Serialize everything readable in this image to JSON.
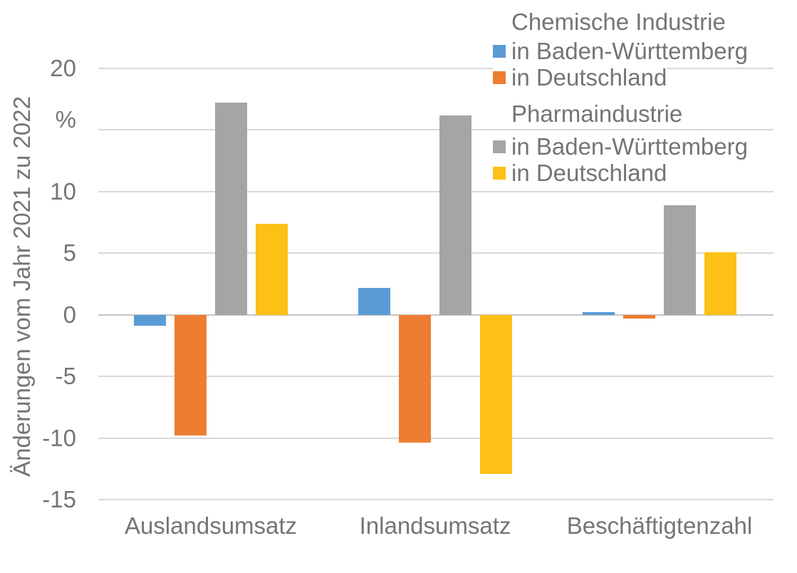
{
  "chart_data": {
    "type": "bar",
    "title": "",
    "ylabel": "Änderungen vom Jahr 2021 zu 2022",
    "unit": "%",
    "categories": [
      "Auslandsumsatz",
      "Inlandsumsatz",
      "Beschäftigtenzahl"
    ],
    "series": [
      {
        "id": "chemie-bw",
        "group": "Chemische Industrie",
        "label": "in Baden-Württemberg",
        "color": "#5B9BD5",
        "values": [
          -0.9,
          2.2,
          0.2
        ]
      },
      {
        "id": "chemie-de",
        "group": "Chemische Industrie",
        "label": "in Deutschland",
        "color": "#ED7D31",
        "values": [
          -9.8,
          -10.4,
          -0.3
        ]
      },
      {
        "id": "pharma-bw",
        "group": "Pharmaindustrie",
        "label": "in Baden-Württemberg",
        "color": "#A5A5A5",
        "values": [
          17.2,
          16.2,
          8.9
        ]
      },
      {
        "id": "pharma-de",
        "group": "Pharmaindustrie",
        "label": "in Deutschland",
        "color": "#FCC016",
        "values": [
          7.4,
          -12.9,
          5.1
        ]
      }
    ],
    "ylim": [
      -15,
      20
    ],
    "ytick_interval": 5,
    "yticks": [
      {
        "value": 20,
        "label": "20"
      },
      {
        "value": 15,
        "label": "%"
      },
      {
        "value": 10,
        "label": "10"
      },
      {
        "value": 5,
        "label": "5"
      },
      {
        "value": 0,
        "label": "0"
      },
      {
        "value": -5,
        "label": "-5"
      },
      {
        "value": -10,
        "label": "-10"
      },
      {
        "value": -15,
        "label": "-15"
      }
    ],
    "grid": true,
    "legend_position": "top-right",
    "legend": {
      "groups": [
        {
          "header": "Chemische Industrie",
          "items": [
            {
              "label": "in Baden-Württemberg",
              "color": "#5B9BD5"
            },
            {
              "label": "in Deutschland",
              "color": "#ED7D31"
            }
          ]
        },
        {
          "header": "Pharmaindustrie",
          "items": [
            {
              "label": "in Baden-Württemberg",
              "color": "#A5A5A5"
            },
            {
              "label": "in Deutschland",
              "color": "#FCC016"
            }
          ]
        }
      ]
    },
    "colors": {
      "background": "#FFFFFF",
      "text": "#757575",
      "gridline": "#D9D9D9",
      "zero_line": "#C6C6C6"
    }
  }
}
